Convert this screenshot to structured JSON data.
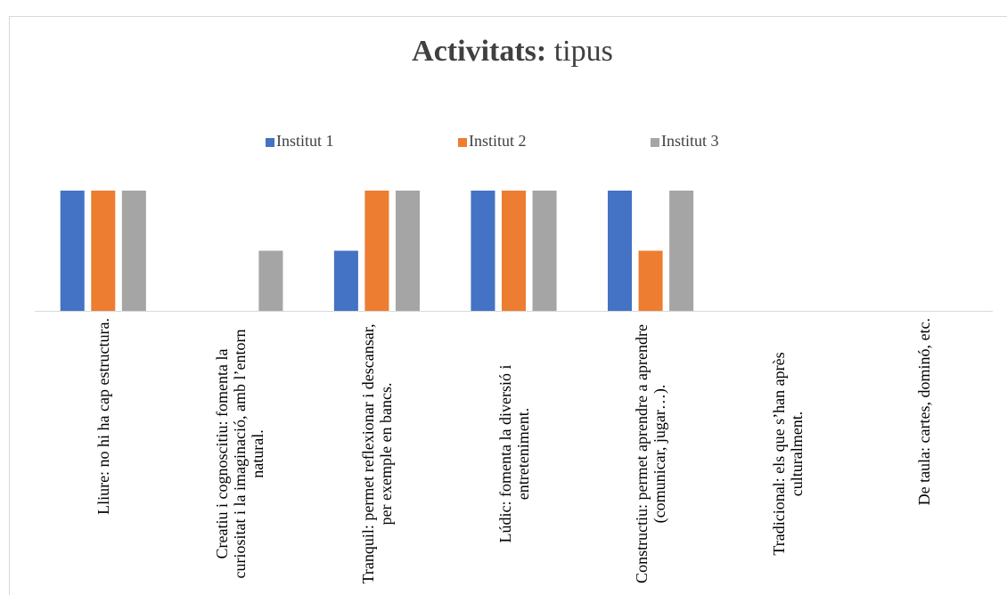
{
  "chart_data": {
    "type": "bar",
    "title": [
      "Activitats:",
      "tipus"
    ],
    "categories": [
      "Lliure: no hi ha cap estructura.",
      "Creatiu i cognoscitiu: fomenta la curiositat i la imaginació, amb l’entorn natural.",
      "Tranquil: permet reflexionar i descansar, per exemple en bancs.",
      "Lúdic: fomenta la diversió i entreteniment.",
      "Constructiu: permet aprendre a aprendre (comunicar, jugar…).",
      "Tradicional: els que s’han après culturalment.",
      "De taula: cartes, dominó, etc."
    ],
    "series": [
      {
        "name": "Institut 1",
        "color": "#4472c4",
        "values": [
          2,
          0,
          1,
          2,
          2,
          0,
          0
        ]
      },
      {
        "name": "Institut 2",
        "color": "#ed7d31",
        "values": [
          2,
          0,
          2,
          2,
          1,
          0,
          0
        ]
      },
      {
        "name": "Institut 3",
        "color": "#a5a5a5",
        "values": [
          2,
          1,
          2,
          2,
          2,
          0,
          0
        ]
      }
    ],
    "legend": "top"
  }
}
